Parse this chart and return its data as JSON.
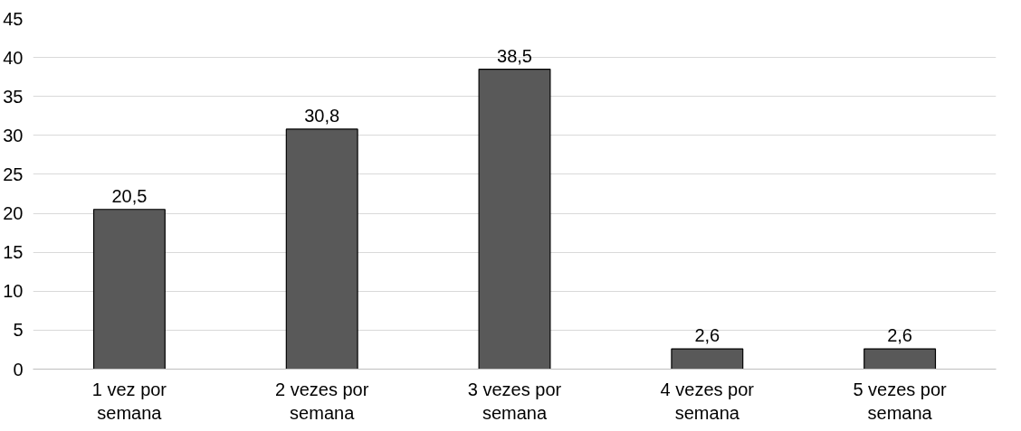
{
  "chart_data": {
    "type": "bar",
    "categories": [
      "1 vez por semana",
      "2 vezes por semana",
      "3 vezes por semana",
      "4 vezes por semana",
      "5 vezes por semana"
    ],
    "values": [
      20.5,
      30.8,
      38.5,
      2.6,
      2.6
    ],
    "value_labels": [
      "20,5",
      "30,8",
      "38,5",
      "2,6",
      "2,6"
    ],
    "color": "#595959",
    "ylim": [
      0,
      45
    ],
    "yticks": [
      0,
      5,
      10,
      15,
      20,
      25,
      30,
      35,
      40,
      45
    ],
    "grid": "y"
  }
}
